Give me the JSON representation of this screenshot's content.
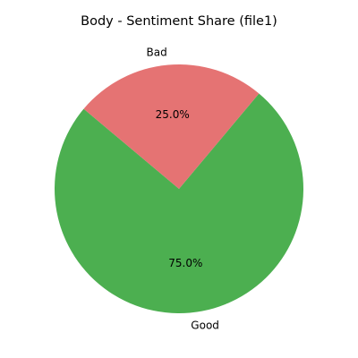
{
  "chart_data": {
    "type": "pie",
    "title": "Body - Sentiment Share (file1)",
    "slices": [
      {
        "label": "Good",
        "value": 75.0,
        "pct_label": "75.0%",
        "color": "#4caf50"
      },
      {
        "label": "Bad",
        "value": 25.0,
        "pct_label": "25.0%",
        "color": "#e57373"
      }
    ],
    "start_angle_deg": 140,
    "direction": "counterclockwise",
    "legend": "none"
  }
}
